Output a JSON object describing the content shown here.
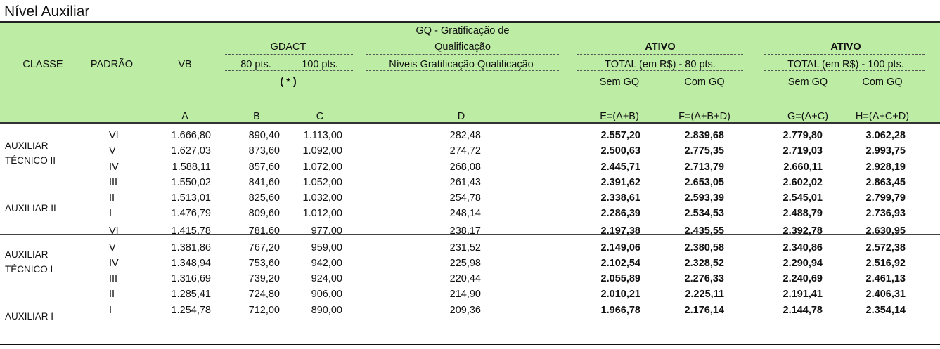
{
  "title": "Nível Auxiliar",
  "header": {
    "classe": "CLASSE",
    "padrao": "PADRÃO",
    "vb": "VB",
    "gdact": "GDACT",
    "pts80": "80 pts.",
    "pts100": "100 pts.",
    "asterisk": "( * )",
    "gq_line1": "GQ - Gratificação de",
    "gq_line2": "Qualificação",
    "gq_sub": "Níveis Gratificação Qualificação",
    "ativo1": "ATIVO",
    "total80": "TOTAL (em R$) - 80 pts.",
    "ativo2": "ATIVO",
    "total100": "TOTAL (em R$) - 100 pts.",
    "semgq1": "Sem GQ",
    "comgq1": "Com GQ",
    "semgq2": "Sem GQ",
    "comgq2": "Com GQ",
    "letters": {
      "a": "A",
      "b": "B",
      "c": "C",
      "d": "D",
      "e": "E=(A+B)",
      "f": "F=(A+B+D)",
      "g": "G=(A+C)",
      "h": "H=(A+C+D)"
    }
  },
  "classes": {
    "tec2_l1": "AUXILIAR",
    "tec2_l2": "TÉCNICO II",
    "aux2": "AUXILIAR II",
    "tec1_l1": "AUXILIAR",
    "tec1_l2": "TÉCNICO I",
    "aux1": "AUXILIAR I"
  },
  "rows": [
    {
      "padrao": "VI",
      "vb": "1.666,80",
      "b": "890,40",
      "c": "1.113,00",
      "d": "282,48",
      "e": "2.557,20",
      "f": "2.839,68",
      "g": "2.779,80",
      "h": "3.062,28"
    },
    {
      "padrao": "V",
      "vb": "1.627,03",
      "b": "873,60",
      "c": "1.092,00",
      "d": "274,72",
      "e": "2.500,63",
      "f": "2.775,35",
      "g": "2.719,03",
      "h": "2.993,75"
    },
    {
      "padrao": "IV",
      "vb": "1.588,11",
      "b": "857,60",
      "c": "1.072,00",
      "d": "268,08",
      "e": "2.445,71",
      "f": "2.713,79",
      "g": "2.660,11",
      "h": "2.928,19"
    },
    {
      "padrao": "III",
      "vb": "1.550,02",
      "b": "841,60",
      "c": "1.052,00",
      "d": "261,43",
      "e": "2.391,62",
      "f": "2.653,05",
      "g": "2.602,02",
      "h": "2.863,45"
    },
    {
      "padrao": "II",
      "vb": "1.513,01",
      "b": "825,60",
      "c": "1.032,00",
      "d": "254,78",
      "e": "2.338,61",
      "f": "2.593,39",
      "g": "2.545,01",
      "h": "2.799,79"
    },
    {
      "padrao": "I",
      "vb": "1.476,79",
      "b": "809,60",
      "c": "1.012,00",
      "d": "248,14",
      "e": "2.286,39",
      "f": "2.534,53",
      "g": "2.488,79",
      "h": "2.736,93"
    },
    {
      "padrao": "VI",
      "vb": "1.415,78",
      "b": "781,60",
      "c": "977,00",
      "d": "238,17",
      "e": "2.197,38",
      "f": "2.435,55",
      "g": "2.392,78",
      "h": "2.630,95"
    },
    {
      "padrao": "V",
      "vb": "1.381,86",
      "b": "767,20",
      "c": "959,00",
      "d": "231,52",
      "e": "2.149,06",
      "f": "2.380,58",
      "g": "2.340,86",
      "h": "2.572,38"
    },
    {
      "padrao": "IV",
      "vb": "1.348,94",
      "b": "753,60",
      "c": "942,00",
      "d": "225,98",
      "e": "2.102,54",
      "f": "2.328,52",
      "g": "2.290,94",
      "h": "2.516,92"
    },
    {
      "padrao": "III",
      "vb": "1.316,69",
      "b": "739,20",
      "c": "924,00",
      "d": "220,44",
      "e": "2.055,89",
      "f": "2.276,33",
      "g": "2.240,69",
      "h": "2.461,13"
    },
    {
      "padrao": "II",
      "vb": "1.285,41",
      "b": "724,80",
      "c": "906,00",
      "d": "214,90",
      "e": "2.010,21",
      "f": "2.225,11",
      "g": "2.191,41",
      "h": "2.406,31"
    },
    {
      "padrao": "I",
      "vb": "1.254,78",
      "b": "712,00",
      "c": "890,00",
      "d": "209,36",
      "e": "1.966,78",
      "f": "2.176,14",
      "g": "2.144,78",
      "h": "2.354,14"
    }
  ]
}
